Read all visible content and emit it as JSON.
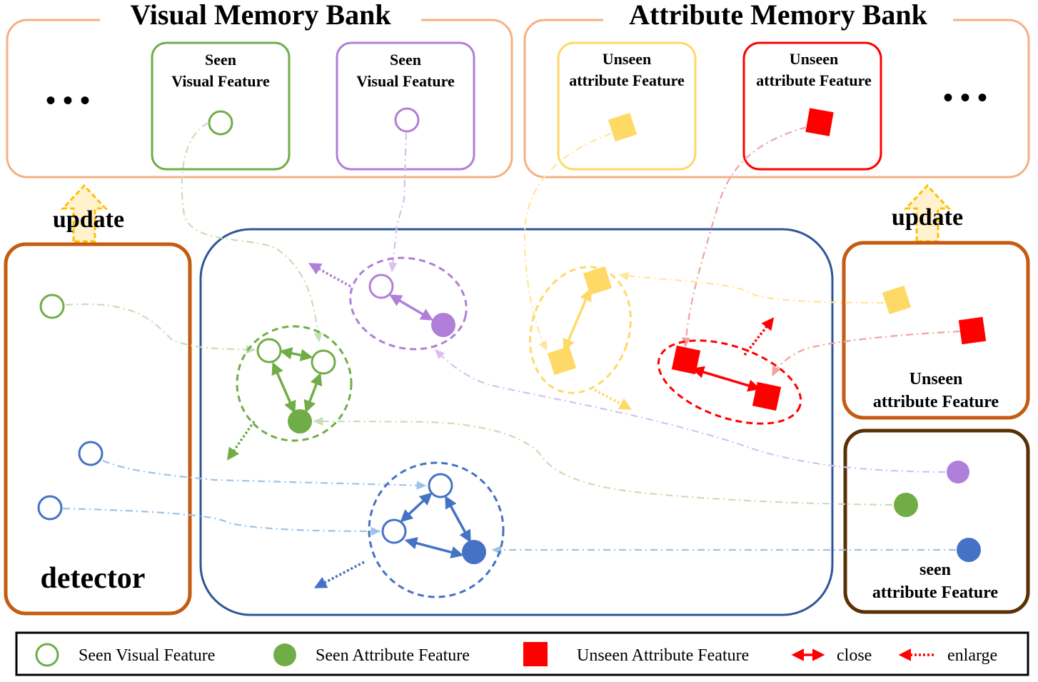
{
  "visual_bank": {
    "title": "Visual Memory Bank",
    "ellipsis": "• • •",
    "box1": [
      "Seen",
      "Visual Feature"
    ],
    "box2": [
      "Seen",
      "Visual Feature"
    ]
  },
  "attribute_bank": {
    "title": "Attribute Memory Bank",
    "ellipsis": "• • •",
    "box1": [
      "Unseen",
      "attribute Feature"
    ],
    "box2": [
      "Unseen",
      "attribute Feature"
    ]
  },
  "left": {
    "update": "update",
    "detector": "detector"
  },
  "right": {
    "update": "update",
    "unseen_label": [
      "Unseen",
      "attribute Feature"
    ],
    "seen_label": [
      "seen",
      "attribute Feature"
    ]
  },
  "legend": {
    "seen_visual": "Seen Visual Feature",
    "seen_attribute": "Seen Attribute Feature",
    "unseen_attribute": "Unseen Attribute Feature",
    "close": "close",
    "enlarge": "enlarge"
  },
  "colors": {
    "green": "#70ad47",
    "purple": "#b07fd9",
    "blue": "#4472c4",
    "yellow": "#ffd966",
    "red": "#ff0000",
    "orange_border": "#c55a11",
    "peach_border": "#f4b183",
    "navy_border": "#2f5597",
    "brown_border": "#5a3005"
  }
}
